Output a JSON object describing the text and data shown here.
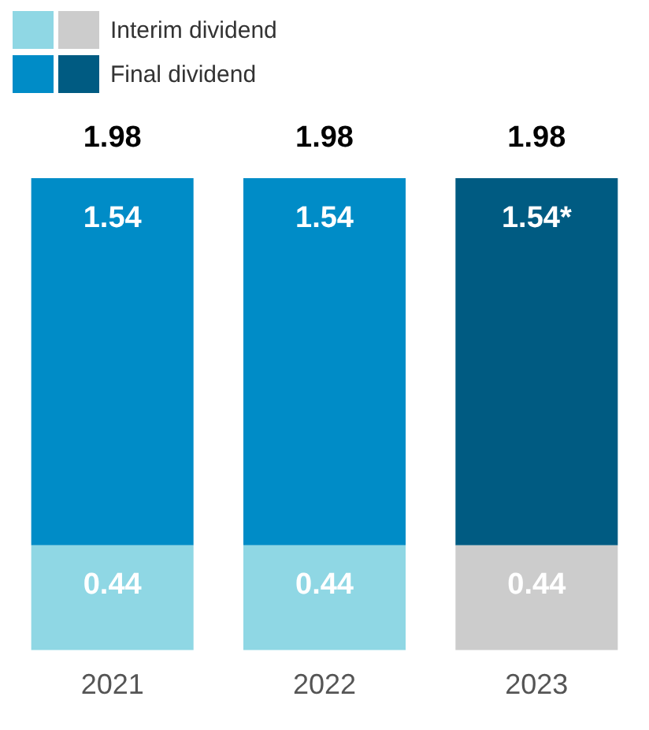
{
  "chart_data": {
    "type": "bar",
    "stacked": true,
    "categories": [
      "2021",
      "2022",
      "2023"
    ],
    "series": [
      {
        "name": "Interim dividend",
        "colors": [
          "#8fd7e4",
          "#8fd7e4",
          "#cccccc"
        ],
        "values": [
          0.44,
          0.44,
          0.44
        ],
        "value_labels": [
          "0.44",
          "0.44",
          "0.44"
        ]
      },
      {
        "name": "Final dividend",
        "colors": [
          "#008cc7",
          "#008cc7",
          "#005b82"
        ],
        "values": [
          1.54,
          1.54,
          1.54
        ],
        "value_labels": [
          "1.54",
          "1.54",
          "1.54*"
        ]
      }
    ],
    "totals": [
      "1.98",
      "1.98",
      "1.98"
    ],
    "legend": "top left",
    "grid": false
  }
}
